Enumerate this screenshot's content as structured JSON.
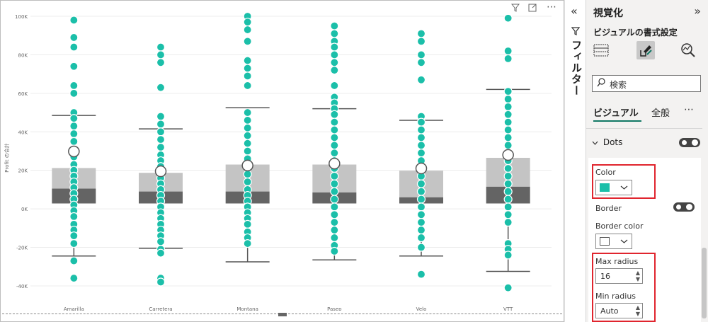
{
  "visual": {
    "toolbar_icons": [
      "filter-icon",
      "focus-mode-icon",
      "more-options-icon"
    ],
    "more_label": "⋯"
  },
  "chart_data": {
    "type": "box",
    "title": "",
    "xlabel": "",
    "ylabel": "Profit の合計",
    "ylim": [
      -47000,
      100000
    ],
    "yticks": [
      -40000,
      -20000,
      0,
      20000,
      40000,
      60000,
      80000,
      100000
    ],
    "ytick_labels": [
      "-40K",
      "-20K",
      "0K",
      "20K",
      "40K",
      "60K",
      "80K",
      "100K"
    ],
    "categories": [
      "Amarilla",
      "Carretera",
      "Montana",
      "Paseo",
      "Velo",
      "VTT"
    ],
    "box_color_upper": "#c4c4c4",
    "box_color_lower": "#646464",
    "dot_color": "#1bbfa9",
    "mean_color": "#ffffff",
    "boxes": [
      {
        "whisker_low": -24500,
        "q1": 2800,
        "median": 10500,
        "q3": 21200,
        "whisker_high": 48500,
        "mean": 29800
      },
      {
        "whisker_low": -20500,
        "q1": 2800,
        "median": 9000,
        "q3": 18700,
        "whisker_high": 41500,
        "mean": 19500
      },
      {
        "whisker_low": -27500,
        "q1": 2800,
        "median": 9000,
        "q3": 23000,
        "whisker_high": 52500,
        "mean": 22500
      },
      {
        "whisker_low": -26500,
        "q1": 2800,
        "median": 8500,
        "q3": 23000,
        "whisker_high": 52000,
        "mean": 23500
      },
      {
        "whisker_low": -24500,
        "q1": 2800,
        "median": 6000,
        "q3": 19800,
        "whisker_high": 46000,
        "mean": 21000
      },
      {
        "whisker_low": -32500,
        "q1": 2800,
        "median": 11500,
        "q3": 26500,
        "whisker_high": 62000,
        "mean": 28000
      }
    ],
    "points": [
      [
        98000,
        89000,
        84000,
        74000,
        64000,
        60000,
        50000,
        47000,
        43000,
        39000,
        35000,
        31000,
        27000,
        23000,
        20000,
        17000,
        14000,
        11000,
        8000,
        5000,
        2000,
        -1000,
        -4000,
        -8000,
        -11000,
        -14000,
        -18000,
        -27000,
        -36000
      ],
      [
        84000,
        80000,
        76000,
        63000,
        48000,
        44000,
        40000,
        36000,
        32000,
        28000,
        25000,
        22000,
        19000,
        16000,
        13000,
        10000,
        7000,
        4000,
        1000,
        -2000,
        -5000,
        -8000,
        -11000,
        -14000,
        -17000,
        -21000,
        -23000,
        -36000,
        -38000
      ],
      [
        100000,
        97000,
        93000,
        87000,
        77000,
        73000,
        69000,
        64000,
        50000,
        46000,
        42000,
        38000,
        34000,
        30000,
        26000,
        22000,
        18000,
        14000,
        10000,
        7000,
        4000,
        1000,
        -2000,
        -5000,
        -8000,
        -12000,
        -15000,
        -18000
      ],
      [
        95000,
        91000,
        87000,
        84000,
        80000,
        76000,
        72000,
        64000,
        58000,
        55000,
        52000,
        49000,
        45000,
        41000,
        37000,
        33000,
        29000,
        25000,
        21000,
        17000,
        13000,
        9000,
        5000,
        1000,
        -3000,
        -7000,
        -11000,
        -15000,
        -19000,
        -22000
      ],
      [
        91000,
        87000,
        80000,
        76000,
        67000,
        48000,
        45000,
        41000,
        37000,
        33000,
        29000,
        25000,
        21000,
        17000,
        13000,
        9000,
        5000,
        1000,
        -3000,
        -7000,
        -11000,
        -15000,
        -20000,
        -34000
      ],
      [
        99000,
        82000,
        78000,
        61000,
        57000,
        53000,
        49000,
        45000,
        41000,
        37000,
        33000,
        29000,
        25000,
        21000,
        17000,
        13000,
        9000,
        5000,
        1000,
        -3000,
        -7000,
        -18000,
        -21000,
        -24000,
        -41000
      ]
    ]
  },
  "filters_strip": {
    "collapse_glyph": "«",
    "funnel_glyph": "⛛",
    "label": "フィルター"
  },
  "pane": {
    "title": "視覚化",
    "expand_glyph": "»",
    "subtitle": "ビジュアルの書式設定",
    "icons": [
      "build-visual-icon",
      "format-visual-icon",
      "analytics-icon"
    ],
    "search": {
      "placeholder": "検索",
      "icon": "search-icon"
    },
    "tabs": [
      {
        "label": "ビジュアル",
        "active": true
      },
      {
        "label": "全般",
        "active": false
      }
    ],
    "more_glyph": "⋯",
    "section": {
      "label": "Dots",
      "expanded": true,
      "toggle_on": true
    },
    "color": {
      "label": "Color",
      "value": "#1bbfa9"
    },
    "border": {
      "label": "Border",
      "toggle_on": true
    },
    "border_color": {
      "label": "Border color",
      "value": "#ffffff"
    },
    "max_radius": {
      "label": "Max radius",
      "value": "16"
    },
    "min_radius": {
      "label": "Min radius",
      "value": "Auto"
    },
    "highlight_color": "#e0252e"
  }
}
